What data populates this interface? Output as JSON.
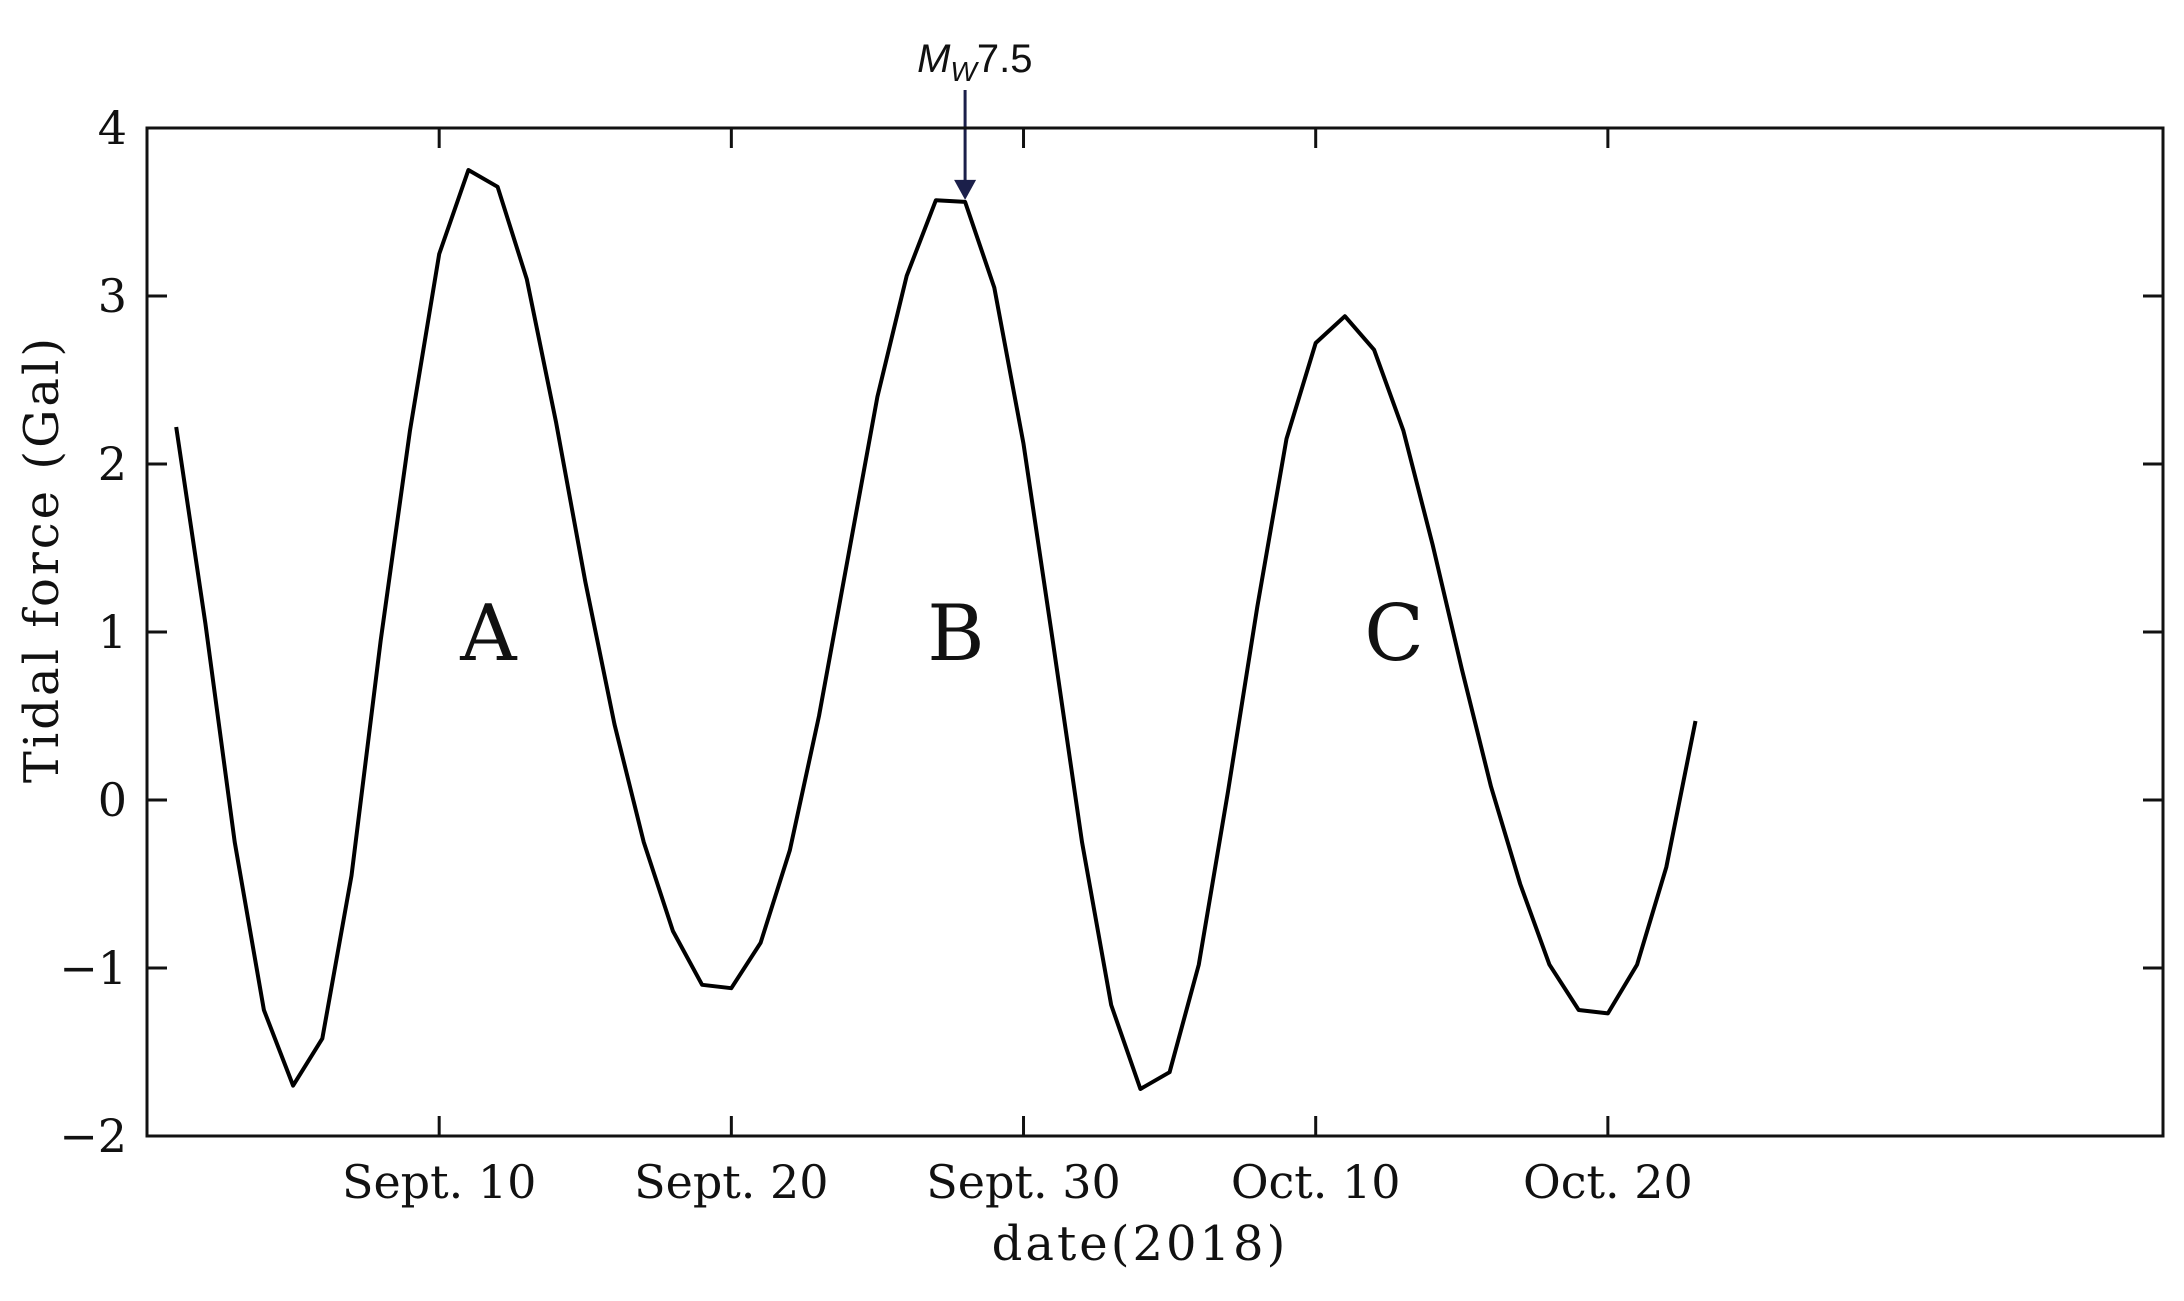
{
  "chart_data": {
    "type": "line",
    "xlabel": "date(2018)",
    "ylabel": "Tidal force (Gal)",
    "ylim": [
      -2,
      4
    ],
    "xlim": [
      "2018-08-31",
      "2018-11-08"
    ],
    "yticks": [
      {
        "value": -2,
        "label": "−2"
      },
      {
        "value": -1,
        "label": "−1"
      },
      {
        "value": 0,
        "label": "0"
      },
      {
        "value": 1,
        "label": "1"
      },
      {
        "value": 2,
        "label": "2"
      },
      {
        "value": 3,
        "label": "3"
      },
      {
        "value": 4,
        "label": "4"
      }
    ],
    "xticks": [
      {
        "value": "2018-09-10",
        "label": "Sept. 10"
      },
      {
        "value": "2018-09-20",
        "label": "Sept. 20"
      },
      {
        "value": "2018-09-30",
        "label": "Sept. 30"
      },
      {
        "value": "2018-10-10",
        "label": "Oct. 10"
      },
      {
        "value": "2018-10-20",
        "label": "Oct. 20"
      }
    ],
    "grid": false,
    "series": [
      {
        "color": "#000000",
        "points": [
          [
            "2018-09-01",
            2.22
          ],
          [
            "2018-09-02",
            1.05
          ],
          [
            "2018-09-03",
            -0.25
          ],
          [
            "2018-09-04",
            -1.25
          ],
          [
            "2018-09-05",
            -1.7
          ],
          [
            "2018-09-06",
            -1.42
          ],
          [
            "2018-09-07",
            -0.45
          ],
          [
            "2018-09-08",
            0.95
          ],
          [
            "2018-09-09",
            2.2
          ],
          [
            "2018-09-10",
            3.25
          ],
          [
            "2018-09-11",
            3.75
          ],
          [
            "2018-09-12",
            3.65
          ],
          [
            "2018-09-13",
            3.1
          ],
          [
            "2018-09-14",
            2.25
          ],
          [
            "2018-09-15",
            1.3
          ],
          [
            "2018-09-16",
            0.45
          ],
          [
            "2018-09-17",
            -0.25
          ],
          [
            "2018-09-18",
            -0.78
          ],
          [
            "2018-09-19",
            -1.1
          ],
          [
            "2018-09-20",
            -1.12
          ],
          [
            "2018-09-21",
            -0.85
          ],
          [
            "2018-09-22",
            -0.3
          ],
          [
            "2018-09-23",
            0.5
          ],
          [
            "2018-09-24",
            1.45
          ],
          [
            "2018-09-25",
            2.4
          ],
          [
            "2018-09-26",
            3.12
          ],
          [
            "2018-09-27",
            3.57
          ],
          [
            "2018-09-28",
            3.56
          ],
          [
            "2018-09-29",
            3.05
          ],
          [
            "2018-09-30",
            2.12
          ],
          [
            "2018-10-01",
            0.95
          ],
          [
            "2018-10-02",
            -0.25
          ],
          [
            "2018-10-03",
            -1.22
          ],
          [
            "2018-10-04",
            -1.72
          ],
          [
            "2018-10-05",
            -1.62
          ],
          [
            "2018-10-06",
            -0.98
          ],
          [
            "2018-10-07",
            0.05
          ],
          [
            "2018-10-08",
            1.15
          ],
          [
            "2018-10-09",
            2.15
          ],
          [
            "2018-10-10",
            2.72
          ],
          [
            "2018-10-11",
            2.88
          ],
          [
            "2018-10-12",
            2.68
          ],
          [
            "2018-10-13",
            2.2
          ],
          [
            "2018-10-14",
            1.52
          ],
          [
            "2018-10-15",
            0.78
          ],
          [
            "2018-10-16",
            0.08
          ],
          [
            "2018-10-17",
            -0.5
          ],
          [
            "2018-10-18",
            -0.98
          ],
          [
            "2018-10-19",
            -1.25
          ],
          [
            "2018-10-20",
            -1.27
          ],
          [
            "2018-10-21",
            -0.98
          ],
          [
            "2018-10-22",
            -0.4
          ],
          [
            "2018-10-23",
            0.47
          ]
        ]
      }
    ],
    "annotations": [
      {
        "id": "peak-a",
        "text": "A",
        "x": "2018-09-11",
        "y": 1.0
      },
      {
        "id": "peak-b",
        "text": "B",
        "x": "2018-09-27",
        "y": 1.0
      },
      {
        "id": "peak-c",
        "text": "C",
        "x": "2018-10-12",
        "y": 1.0
      }
    ],
    "event_marker": {
      "label_main": "M",
      "label_sub": "W",
      "label_value": "7.5",
      "x": "2018-09-28",
      "y": 3.56
    }
  }
}
